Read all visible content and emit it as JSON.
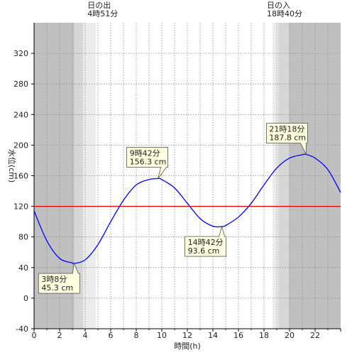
{
  "chart_data": {
    "type": "line",
    "xlabel": "時間(h)",
    "ylabel": "水位(cm)",
    "xlim": [
      0,
      24
    ],
    "ylim": [
      -40,
      360
    ],
    "x_ticks": [
      0,
      2,
      4,
      6,
      8,
      10,
      12,
      14,
      16,
      18,
      20,
      22
    ],
    "y_ticks": [
      -40,
      0,
      40,
      80,
      120,
      160,
      200,
      240,
      280,
      320
    ],
    "grid": true,
    "reference_line": {
      "value": 120,
      "color": "#e60000"
    },
    "series": [
      {
        "color": "#0000ff",
        "x": [
          0,
          1,
          2,
          3,
          3.13,
          4,
          5,
          6,
          7,
          8,
          9,
          9.7,
          10,
          11,
          12,
          13,
          14,
          14.7,
          15,
          16,
          17,
          18,
          19,
          20,
          21,
          21.3,
          22,
          23,
          24
        ],
        "y": [
          114,
          75,
          52,
          46,
          45.3,
          50,
          70,
          100,
          128,
          148,
          155,
          156.3,
          155,
          144,
          124,
          104,
          94,
          93.6,
          95,
          106,
          124,
          148,
          170,
          183,
          187.5,
          187.8,
          183,
          168,
          138
        ]
      }
    ],
    "annotations": [
      {
        "x": 3.13,
        "y": 45.3,
        "time": "3時8分",
        "value": "45.3 cm"
      },
      {
        "x": 9.7,
        "y": 156.3,
        "time": "9時42分",
        "value": "156.3 cm"
      },
      {
        "x": 14.7,
        "y": 93.6,
        "time": "14時42分",
        "value": "93.6 cm"
      },
      {
        "x": 21.3,
        "y": 187.8,
        "time": "21時18分",
        "value": "187.8 cm"
      }
    ],
    "sun": {
      "sunrise": {
        "label": "日の出",
        "time": "4時51分",
        "hour": 4.85
      },
      "sunset": {
        "label": "日の入",
        "time": "18時40分",
        "hour": 18.67
      }
    },
    "colors": {
      "night": "#c0c0c0",
      "twilight_dark": "#d6d6d6",
      "twilight_light": "#ececec",
      "day": "#ffffff"
    }
  }
}
